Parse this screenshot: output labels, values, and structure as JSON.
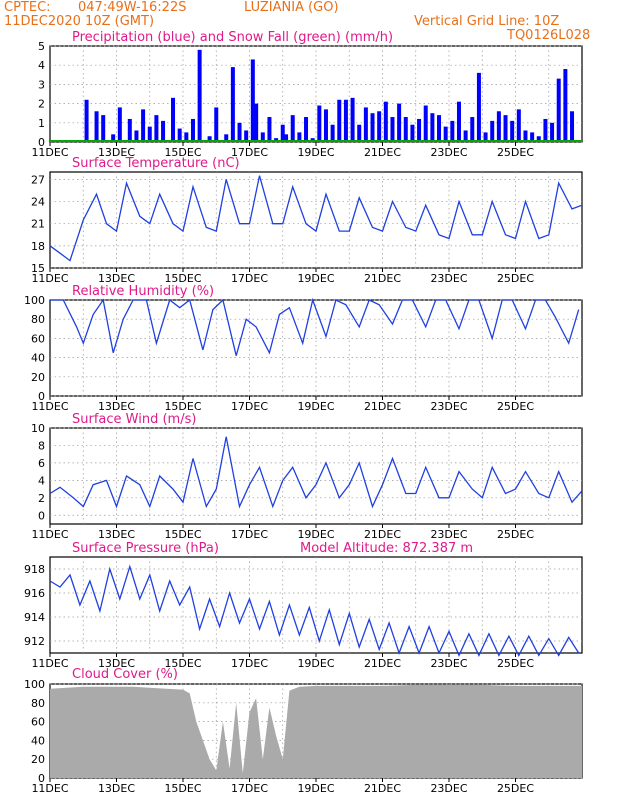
{
  "header": {
    "source": "CPTEC:",
    "coords": "047:49W-16:22S",
    "location": "LUZIANIA (GO)",
    "run": "11DEC2020 10Z (GMT)",
    "grid_note": "Vertical Grid Line: 10Z",
    "model": "TQ0126L028"
  },
  "colors": {
    "header": "#e8701a",
    "title": "#e01a8a",
    "precip": "#0000ff",
    "snow": "#00aa00",
    "line": "#2040e0",
    "cloud": "#aaaaaa"
  },
  "chart_data": [
    {
      "type": "bar",
      "title": "Precipitation (blue) and Snow Fall (green) (mm/h)",
      "date_ticks": [
        "11DEC",
        "13DEC",
        "15DEC",
        "17DEC",
        "19DEC",
        "21DEC",
        "23DEC",
        "25DEC"
      ],
      "ylim": [
        0,
        5
      ],
      "yticks": [
        0,
        1,
        2,
        3,
        4,
        5
      ],
      "series": [
        {
          "name": "Precipitation",
          "x_days": [
            0.5,
            1.1,
            1.4,
            1.6,
            1.9,
            2.1,
            2.4,
            2.6,
            2.8,
            3.0,
            3.2,
            3.4,
            3.7,
            3.9,
            4.1,
            4.3,
            4.5,
            4.8,
            5.0,
            5.3,
            5.5,
            5.7,
            5.9,
            6.1,
            6.2,
            6.4,
            6.6,
            6.8,
            7.0,
            7.1,
            7.3,
            7.5,
            7.7,
            7.9,
            8.1,
            8.3,
            8.5,
            8.7,
            8.9,
            9.1,
            9.3,
            9.5,
            9.7,
            9.9,
            10.1,
            10.3,
            10.5,
            10.7,
            10.9,
            11.1,
            11.3,
            11.5,
            11.7,
            11.9,
            12.1,
            12.3,
            12.5,
            12.7,
            12.9,
            13.1,
            13.3,
            13.5,
            13.7,
            13.9,
            14.1,
            14.3,
            14.5,
            14.7,
            14.9,
            15.1,
            15.3,
            15.5,
            15.7
          ],
          "values": [
            0.1,
            2.2,
            1.6,
            1.4,
            0.4,
            1.8,
            1.2,
            0.6,
            1.7,
            0.8,
            1.4,
            1.1,
            2.3,
            0.7,
            0.5,
            1.2,
            4.8,
            0.3,
            1.8,
            0.4,
            3.9,
            1.0,
            0.6,
            4.3,
            2.0,
            0.5,
            1.3,
            0.2,
            0.9,
            0.4,
            1.4,
            0.5,
            1.3,
            0.2,
            1.9,
            1.7,
            0.9,
            2.2,
            2.2,
            2.3,
            0.9,
            1.8,
            1.5,
            1.6,
            2.1,
            1.3,
            2.0,
            1.3,
            0.9,
            1.2,
            1.9,
            1.5,
            1.4,
            0.8,
            1.1,
            2.1,
            0.6,
            1.3,
            3.6,
            0.5,
            1.1,
            1.6,
            1.4,
            1.1,
            1.7,
            0.6,
            0.5,
            0.3,
            1.2,
            1.0,
            3.3,
            3.8,
            1.6
          ]
        },
        {
          "name": "Snow Fall",
          "x_days": [],
          "values": []
        }
      ]
    },
    {
      "type": "line",
      "title": "Surface Temperature (nC)",
      "date_ticks": [
        "11DEC",
        "13DEC",
        "15DEC",
        "17DEC",
        "19DEC",
        "21DEC",
        "23DEC",
        "25DEC"
      ],
      "ylim": [
        15,
        28
      ],
      "yticks": [
        15,
        18,
        21,
        24,
        27
      ],
      "series": [
        {
          "name": "",
          "x_days": [
            0,
            0.3,
            0.6,
            1.0,
            1.4,
            1.7,
            2.0,
            2.3,
            2.7,
            3.0,
            3.3,
            3.7,
            4.0,
            4.3,
            4.7,
            5.0,
            5.3,
            5.7,
            6.0,
            6.3,
            6.7,
            7.0,
            7.3,
            7.7,
            8.0,
            8.3,
            8.7,
            9.0,
            9.3,
            9.7,
            10.0,
            10.3,
            10.7,
            11.0,
            11.3,
            11.7,
            12.0,
            12.3,
            12.7,
            13.0,
            13.3,
            13.7,
            14.0,
            14.3,
            14.7,
            15.0,
            15.3,
            15.7,
            16.0
          ],
          "values": [
            18,
            17,
            16,
            21.5,
            25,
            21,
            20,
            26.5,
            22,
            21,
            25,
            21,
            20,
            26,
            20.5,
            20,
            27,
            21,
            21,
            27.5,
            21,
            21,
            26,
            21,
            20,
            25,
            20,
            20,
            24.5,
            20.5,
            20,
            24,
            20.5,
            20,
            23.5,
            19.5,
            19,
            24,
            19.5,
            19.5,
            24,
            19.5,
            19,
            24,
            19,
            19.5,
            26.5,
            23,
            23.5
          ]
        }
      ]
    },
    {
      "type": "line",
      "title": "Relative Humidity (%)",
      "date_ticks": [
        "11DEC",
        "13DEC",
        "15DEC",
        "17DEC",
        "19DEC",
        "21DEC",
        "23DEC",
        "25DEC"
      ],
      "ylim": [
        0,
        100
      ],
      "yticks": [
        0,
        20,
        40,
        60,
        80,
        100
      ],
      "series": [
        {
          "name": "",
          "x_days": [
            0,
            0.4,
            0.8,
            1.0,
            1.3,
            1.6,
            1.9,
            2.2,
            2.5,
            2.9,
            3.2,
            3.6,
            3.9,
            4.2,
            4.6,
            4.9,
            5.2,
            5.6,
            5.9,
            6.2,
            6.6,
            6.9,
            7.2,
            7.6,
            7.9,
            8.3,
            8.6,
            8.9,
            9.3,
            9.6,
            9.9,
            10.3,
            10.6,
            10.9,
            11.3,
            11.6,
            11.9,
            12.3,
            12.6,
            12.9,
            13.3,
            13.6,
            13.9,
            14.3,
            14.6,
            14.9,
            15.2,
            15.6,
            15.9
          ],
          "values": [
            100,
            100,
            72,
            55,
            85,
            100,
            45,
            80,
            100,
            100,
            55,
            100,
            92,
            100,
            48,
            90,
            100,
            42,
            80,
            72,
            45,
            85,
            92,
            55,
            100,
            62,
            100,
            95,
            72,
            100,
            95,
            75,
            100,
            100,
            72,
            100,
            100,
            70,
            100,
            100,
            60,
            100,
            100,
            70,
            100,
            100,
            82,
            55,
            90
          ]
        }
      ]
    },
    {
      "type": "line",
      "title": "Surface Wind (m/s)",
      "date_ticks": [
        "11DEC",
        "13DEC",
        "15DEC",
        "17DEC",
        "19DEC",
        "21DEC",
        "23DEC",
        "25DEC"
      ],
      "ylim": [
        -1,
        10
      ],
      "yticks": [
        0,
        2,
        4,
        6,
        8,
        10
      ],
      "series": [
        {
          "name": "",
          "x_days": [
            0,
            0.3,
            0.7,
            1.0,
            1.3,
            1.7,
            2.0,
            2.3,
            2.7,
            3.0,
            3.3,
            3.7,
            4.0,
            4.3,
            4.7,
            5.0,
            5.3,
            5.7,
            6.0,
            6.3,
            6.7,
            7.0,
            7.3,
            7.7,
            8.0,
            8.3,
            8.7,
            9.0,
            9.3,
            9.7,
            10.0,
            10.3,
            10.7,
            11.0,
            11.3,
            11.7,
            12.0,
            12.3,
            12.7,
            13.0,
            13.3,
            13.7,
            14.0,
            14.3,
            14.7,
            15.0,
            15.3,
            15.7,
            16.0
          ],
          "values": [
            2.5,
            3.2,
            2,
            1,
            3.5,
            4,
            1,
            4.5,
            3.5,
            1,
            4.5,
            3,
            1.5,
            6.5,
            1,
            3,
            9,
            1,
            3.5,
            5.5,
            1,
            4,
            5.5,
            2,
            3.5,
            6,
            2,
            3.5,
            6,
            1,
            3.5,
            6.5,
            2.5,
            2.5,
            5.5,
            2,
            2,
            5,
            3,
            2,
            5.5,
            2.5,
            3,
            5,
            2.5,
            2,
            5,
            1.5,
            2.8
          ]
        }
      ]
    },
    {
      "type": "line",
      "title": "Surface Pressure (hPa)",
      "annotation": "Model Altitude: 872.387 m",
      "date_ticks": [
        "11DEC",
        "13DEC",
        "15DEC",
        "17DEC",
        "19DEC",
        "21DEC",
        "23DEC",
        "25DEC"
      ],
      "ylim": [
        911,
        919
      ],
      "yticks": [
        912,
        914,
        916,
        918
      ],
      "series": [
        {
          "name": "",
          "x_days": [
            0,
            0.3,
            0.6,
            0.9,
            1.2,
            1.5,
            1.8,
            2.1,
            2.4,
            2.7,
            3.0,
            3.3,
            3.6,
            3.9,
            4.2,
            4.5,
            4.8,
            5.1,
            5.4,
            5.7,
            6.0,
            6.3,
            6.6,
            6.9,
            7.2,
            7.5,
            7.8,
            8.1,
            8.4,
            8.7,
            9.0,
            9.3,
            9.6,
            9.9,
            10.2,
            10.5,
            10.8,
            11.1,
            11.4,
            11.7,
            12.0,
            12.3,
            12.6,
            12.9,
            13.2,
            13.5,
            13.8,
            14.1,
            14.4,
            14.7,
            15.0,
            15.3,
            15.6,
            15.9
          ],
          "values": [
            917,
            916.5,
            917.5,
            915,
            917,
            914.5,
            918,
            915.5,
            918.2,
            915.5,
            917.5,
            914.5,
            917,
            915,
            916.5,
            913,
            915.5,
            913.2,
            916,
            913.5,
            915.5,
            913,
            915.3,
            912.5,
            915,
            912.5,
            914.8,
            912,
            914.6,
            911.7,
            914.3,
            911.5,
            913.8,
            911.3,
            913.5,
            911,
            913.2,
            911,
            913.2,
            911,
            912.8,
            910.8,
            912.6,
            910.8,
            912.6,
            910.8,
            912.4,
            910.8,
            912.4,
            910.8,
            912.2,
            910.8,
            912.3,
            911
          ]
        }
      ]
    },
    {
      "type": "area",
      "title": "Cloud Cover (%)",
      "date_ticks": [
        "11DEC",
        "13DEC",
        "15DEC",
        "17DEC",
        "19DEC",
        "21DEC",
        "23DEC",
        "25DEC"
      ],
      "ylim": [
        0,
        100
      ],
      "yticks": [
        0,
        20,
        40,
        60,
        80,
        100
      ],
      "series": [
        {
          "name": "",
          "x_days": [
            0,
            0.5,
            1.0,
            1.5,
            2.0,
            2.5,
            3.0,
            3.5,
            4.0,
            4.2,
            4.4,
            4.6,
            4.8,
            5.0,
            5.2,
            5.4,
            5.6,
            5.8,
            6.0,
            6.2,
            6.4,
            6.6,
            6.8,
            7.0,
            7.2,
            7.5,
            8.0,
            8.5,
            9.0,
            10.0,
            11.0,
            12.0,
            13.0,
            14.0,
            15.0,
            16.0
          ],
          "values": [
            95,
            96,
            97,
            97,
            97,
            97,
            96,
            95,
            94,
            90,
            60,
            40,
            20,
            8,
            60,
            10,
            80,
            5,
            70,
            85,
            20,
            75,
            45,
            20,
            93,
            97,
            98,
            98,
            98,
            98,
            99,
            99,
            99,
            98,
            98,
            98
          ]
        }
      ]
    }
  ]
}
